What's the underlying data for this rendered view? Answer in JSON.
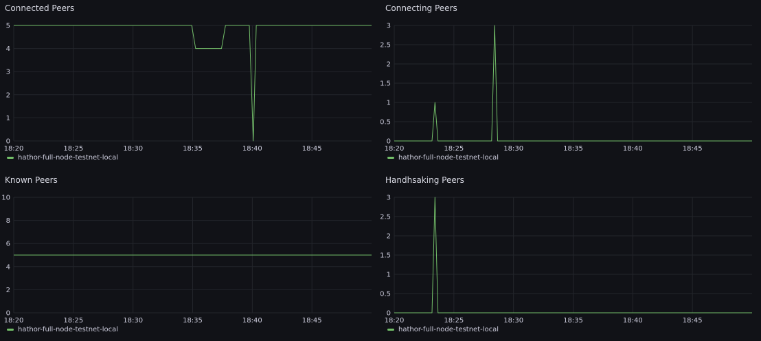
{
  "colors": {
    "background": "#111217",
    "grid": "#23252b",
    "series_line": "#73bf69",
    "text": "#ccccdc"
  },
  "panels": [
    {
      "title": "Connected Peers",
      "legend": "hathor-full-node-testnet-local",
      "chart_data": {
        "type": "line",
        "title": "Connected Peers",
        "xlabel": "",
        "ylabel": "",
        "x_ticks": [
          "18:20",
          "18:25",
          "18:30",
          "18:35",
          "18:40",
          "18:45"
        ],
        "y_ticks": [
          "0",
          "1",
          "2",
          "3",
          "4",
          "5"
        ],
        "xlim": [
          "18:20",
          "18:50"
        ],
        "ylim": [
          0,
          5
        ],
        "grid": true,
        "legend_position": "bottom-left",
        "series": [
          {
            "name": "hathor-full-node-testnet-local",
            "x": [
              "18:20",
              "18:34:55",
              "18:35:15",
              "18:37:25",
              "18:37:45",
              "18:39:45",
              "18:40:05",
              "18:40:20",
              "18:50"
            ],
            "values": [
              5,
              5,
              4,
              4,
              5,
              5,
              0,
              5,
              5
            ]
          }
        ]
      }
    },
    {
      "title": "Connecting Peers",
      "legend": "hathor-full-node-testnet-local",
      "chart_data": {
        "type": "line",
        "title": "Connecting Peers",
        "xlabel": "",
        "ylabel": "",
        "x_ticks": [
          "18:20",
          "18:25",
          "18:30",
          "18:35",
          "18:40",
          "18:45"
        ],
        "y_ticks": [
          "0",
          "0.5",
          "1",
          "1.5",
          "2",
          "2.5",
          "3"
        ],
        "xlim": [
          "18:20",
          "18:50"
        ],
        "ylim": [
          0,
          3
        ],
        "grid": true,
        "legend_position": "bottom-left",
        "series": [
          {
            "name": "hathor-full-node-testnet-local",
            "x": [
              "18:20",
              "18:23:10",
              "18:23:25",
              "18:23:40",
              "18:28:10",
              "18:28:25",
              "18:28:40",
              "18:50"
            ],
            "values": [
              0,
              0,
              1,
              0,
              0,
              3,
              0,
              0
            ]
          }
        ]
      }
    },
    {
      "title": "Known Peers",
      "legend": "hathor-full-node-testnet-local",
      "chart_data": {
        "type": "line",
        "title": "Known Peers",
        "xlabel": "",
        "ylabel": "",
        "x_ticks": [
          "18:20",
          "18:25",
          "18:30",
          "18:35",
          "18:40",
          "18:45"
        ],
        "y_ticks": [
          "0",
          "2",
          "4",
          "6",
          "8",
          "10"
        ],
        "xlim": [
          "18:20",
          "18:50"
        ],
        "ylim": [
          0,
          10
        ],
        "grid": true,
        "legend_position": "bottom-left",
        "series": [
          {
            "name": "hathor-full-node-testnet-local",
            "x": [
              "18:20",
              "18:50"
            ],
            "values": [
              5,
              5
            ]
          }
        ]
      }
    },
    {
      "title": "Handhsaking Peers",
      "legend": "hathor-full-node-testnet-local",
      "chart_data": {
        "type": "line",
        "title": "Handhsaking Peers",
        "xlabel": "",
        "ylabel": "",
        "x_ticks": [
          "18:20",
          "18:25",
          "18:30",
          "18:35",
          "18:40",
          "18:45"
        ],
        "y_ticks": [
          "0",
          "0.5",
          "1",
          "1.5",
          "2",
          "2.5",
          "3"
        ],
        "xlim": [
          "18:20",
          "18:50"
        ],
        "ylim": [
          0,
          3
        ],
        "grid": true,
        "legend_position": "bottom-left",
        "series": [
          {
            "name": "hathor-full-node-testnet-local",
            "x": [
              "18:20",
              "18:23:10",
              "18:23:25",
              "18:23:40",
              "18:50"
            ],
            "values": [
              0,
              0,
              3,
              0,
              0
            ]
          }
        ]
      }
    }
  ]
}
